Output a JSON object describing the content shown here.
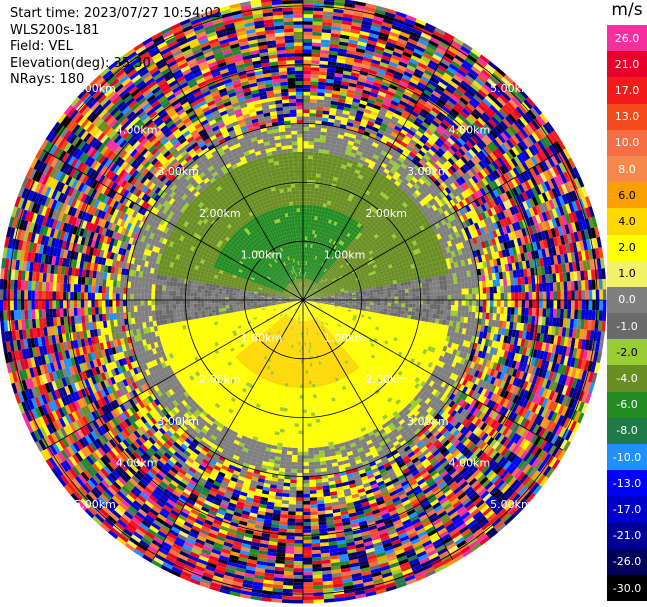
{
  "header": {
    "start_time": "Start time: 2023/07/27 10:54:02",
    "instrument": "WLS200s-181",
    "field": "Field: VEL",
    "elevation": "Elevation(deg): 35.30",
    "nrays": "NRays: 180"
  },
  "colorbar": {
    "unit": "m/s",
    "entries": [
      {
        "label": "26.0",
        "color": "#f52f9f"
      },
      {
        "label": "21.0",
        "color": "#e8002a"
      },
      {
        "label": "17.0",
        "color": "#f51a1a"
      },
      {
        "label": "13.0",
        "color": "#f54a1a"
      },
      {
        "label": "10.0",
        "color": "#f56e45"
      },
      {
        "label": "8.0",
        "color": "#f7884b"
      },
      {
        "label": "6.0",
        "color": "#f7a000"
      },
      {
        "label": "4.0",
        "color": "#ffd800"
      },
      {
        "label": "2.0",
        "color": "#ffff00"
      },
      {
        "label": "1.0",
        "color": "#f2f26a"
      },
      {
        "label": "0.0",
        "color": "#7f7f7f"
      },
      {
        "label": "-1.0",
        "color": "#6a6a6a"
      },
      {
        "label": "-2.0",
        "color": "#9acd32"
      },
      {
        "label": "-4.0",
        "color": "#6b8e23"
      },
      {
        "label": "-6.0",
        "color": "#228b22"
      },
      {
        "label": "-8.0",
        "color": "#1f7a4a"
      },
      {
        "label": "-10.0",
        "color": "#1e90ff"
      },
      {
        "label": "-13.0",
        "color": "#0000ff"
      },
      {
        "label": "-17.0",
        "color": "#0000cd"
      },
      {
        "label": "-21.0",
        "color": "#000099"
      },
      {
        "label": "-26.0",
        "color": "#00005a"
      },
      {
        "label": "-30.0",
        "color": "#000000"
      }
    ]
  },
  "chart_data": {
    "type": "heatmap",
    "title": "",
    "rings_km": [
      1,
      2,
      3,
      4,
      5
    ],
    "ring_labels": [
      "1.00km",
      "2.00km",
      "3.00km",
      "4.00km",
      "5.00km"
    ],
    "radial_spokes_deg": [
      0,
      30,
      60,
      90,
      120,
      150,
      180,
      210,
      240,
      270,
      300,
      330
    ],
    "nrays": 180,
    "range_max_km": 5.1,
    "zones": [
      {
        "region": "north, 0-2.5 km",
        "velocity": -4.0
      },
      {
        "region": "north core, 0.3-1.6 km",
        "velocity": -6.0
      },
      {
        "region": "south, 0-2.5 km",
        "velocity": 2.0
      },
      {
        "region": "south core, 0.3-1.5 km",
        "velocity": 4.0
      },
      {
        "region": "ring, 2.5-3.0 km",
        "velocity": 0.0
      },
      {
        "region": "beyond 3.5 km",
        "velocity": "noise"
      }
    ]
  }
}
